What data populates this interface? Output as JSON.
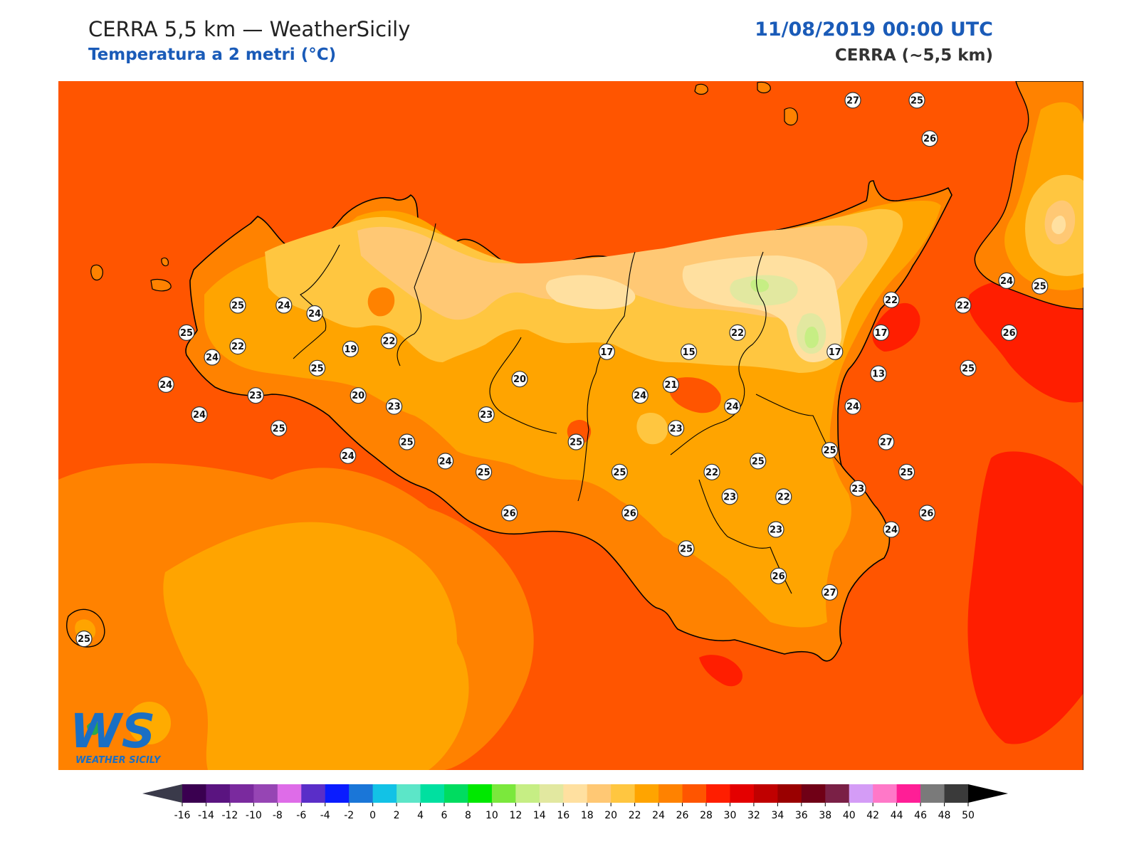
{
  "header": {
    "title": "CERRA 5,5 km — WeatherSicily",
    "subtitle": "Temperatura a 2 metri (°C)",
    "datetime": "11/08/2019 00:00 UTC",
    "model": "CERRA (~5,5 km)"
  },
  "logo": {
    "letters": "WS",
    "text": "WEATHER SICILY"
  },
  "colorbar": {
    "ticks": [
      -16,
      -14,
      -12,
      -10,
      -8,
      -6,
      -4,
      -2,
      0,
      2,
      4,
      6,
      8,
      10,
      12,
      14,
      16,
      18,
      20,
      22,
      24,
      26,
      28,
      30,
      32,
      34,
      36,
      38,
      40,
      42,
      44,
      46,
      48,
      50
    ],
    "colors": [
      "#3a0050",
      "#5a1480",
      "#7a2a9e",
      "#9645b4",
      "#de6ce8",
      "#5a2ec8",
      "#0a1cff",
      "#1a76d8",
      "#12c2e6",
      "#5ce6c8",
      "#00e0a0",
      "#00dc60",
      "#00e800",
      "#7be83c",
      "#c6ee84",
      "#e2e8a0",
      "#ffe0a0",
      "#ffc874",
      "#ffc640",
      "#ffa400",
      "#ff8200",
      "#ff5500",
      "#ff1e00",
      "#e40000",
      "#c00000",
      "#9a0000",
      "#700016",
      "#7a2046",
      "#d49cf6",
      "#ff78c8",
      "#ff1e96",
      "#7a7a7a",
      "#3a3a3a"
    ],
    "under_color": "#3a3a4a",
    "over_color": "#000000"
  },
  "stations": [
    {
      "value": 27,
      "lon": 14.95,
      "lat": 38.8
    },
    {
      "value": 25,
      "lon": 15.2,
      "lat": 38.8
    },
    {
      "value": 26,
      "lon": 15.25,
      "lat": 38.66
    },
    {
      "value": 25,
      "lon": 12.55,
      "lat": 38.05
    },
    {
      "value": 24,
      "lon": 12.73,
      "lat": 38.05
    },
    {
      "value": 24,
      "lon": 12.85,
      "lat": 38.02
    },
    {
      "value": 25,
      "lon": 12.35,
      "lat": 37.95
    },
    {
      "value": 22,
      "lon": 12.55,
      "lat": 37.9
    },
    {
      "value": 24,
      "lon": 12.45,
      "lat": 37.86
    },
    {
      "value": 19,
      "lon": 12.99,
      "lat": 37.89
    },
    {
      "value": 22,
      "lon": 13.14,
      "lat": 37.92
    },
    {
      "value": 22,
      "lon": 15.1,
      "lat": 38.07
    },
    {
      "value": 22,
      "lon": 15.38,
      "lat": 38.05
    },
    {
      "value": 24,
      "lon": 15.55,
      "lat": 38.14
    },
    {
      "value": 25,
      "lon": 15.68,
      "lat": 38.12
    },
    {
      "value": 26,
      "lon": 15.56,
      "lat": 37.95
    },
    {
      "value": 22,
      "lon": 14.5,
      "lat": 37.95
    },
    {
      "value": 17,
      "lon": 15.06,
      "lat": 37.95
    },
    {
      "value": 17,
      "lon": 13.99,
      "lat": 37.88
    },
    {
      "value": 15,
      "lon": 14.31,
      "lat": 37.88
    },
    {
      "value": 17,
      "lon": 14.88,
      "lat": 37.88
    },
    {
      "value": 25,
      "lon": 15.4,
      "lat": 37.82
    },
    {
      "value": 13,
      "lon": 15.05,
      "lat": 37.8
    },
    {
      "value": 24,
      "lon": 12.27,
      "lat": 37.76
    },
    {
      "value": 25,
      "lon": 12.86,
      "lat": 37.82
    },
    {
      "value": 20,
      "lon": 13.65,
      "lat": 37.78
    },
    {
      "value": 21,
      "lon": 14.24,
      "lat": 37.76
    },
    {
      "value": 23,
      "lon": 12.62,
      "lat": 37.72
    },
    {
      "value": 20,
      "lon": 13.02,
      "lat": 37.72
    },
    {
      "value": 23,
      "lon": 13.16,
      "lat": 37.68
    },
    {
      "value": 24,
      "lon": 14.12,
      "lat": 37.72
    },
    {
      "value": 24,
      "lon": 14.48,
      "lat": 37.68
    },
    {
      "value": 24,
      "lon": 14.95,
      "lat": 37.68
    },
    {
      "value": 24,
      "lon": 12.4,
      "lat": 37.65
    },
    {
      "value": 23,
      "lon": 13.52,
      "lat": 37.65
    },
    {
      "value": 25,
      "lon": 12.71,
      "lat": 37.6
    },
    {
      "value": 23,
      "lon": 14.26,
      "lat": 37.6
    },
    {
      "value": 25,
      "lon": 13.21,
      "lat": 37.55
    },
    {
      "value": 25,
      "lon": 13.87,
      "lat": 37.55
    },
    {
      "value": 27,
      "lon": 15.08,
      "lat": 37.55
    },
    {
      "value": 25,
      "lon": 14.86,
      "lat": 37.52
    },
    {
      "value": 24,
      "lon": 12.98,
      "lat": 37.5
    },
    {
      "value": 24,
      "lon": 13.36,
      "lat": 37.48
    },
    {
      "value": 25,
      "lon": 14.58,
      "lat": 37.48
    },
    {
      "value": 25,
      "lon": 13.51,
      "lat": 37.44
    },
    {
      "value": 25,
      "lon": 14.04,
      "lat": 37.44
    },
    {
      "value": 22,
      "lon": 14.4,
      "lat": 37.44
    },
    {
      "value": 25,
      "lon": 15.16,
      "lat": 37.44
    },
    {
      "value": 23,
      "lon": 14.97,
      "lat": 37.38
    },
    {
      "value": 23,
      "lon": 14.47,
      "lat": 37.35
    },
    {
      "value": 22,
      "lon": 14.68,
      "lat": 37.35
    },
    {
      "value": 26,
      "lon": 13.61,
      "lat": 37.29
    },
    {
      "value": 26,
      "lon": 14.08,
      "lat": 37.29
    },
    {
      "value": 26,
      "lon": 15.24,
      "lat": 37.29
    },
    {
      "value": 23,
      "lon": 14.65,
      "lat": 37.23
    },
    {
      "value": 24,
      "lon": 15.1,
      "lat": 37.23
    },
    {
      "value": 25,
      "lon": 14.3,
      "lat": 37.16
    },
    {
      "value": 26,
      "lon": 14.66,
      "lat": 37.06
    },
    {
      "value": 27,
      "lon": 14.86,
      "lat": 37.0
    },
    {
      "value": 25,
      "lon": 11.95,
      "lat": 36.83
    }
  ]
}
